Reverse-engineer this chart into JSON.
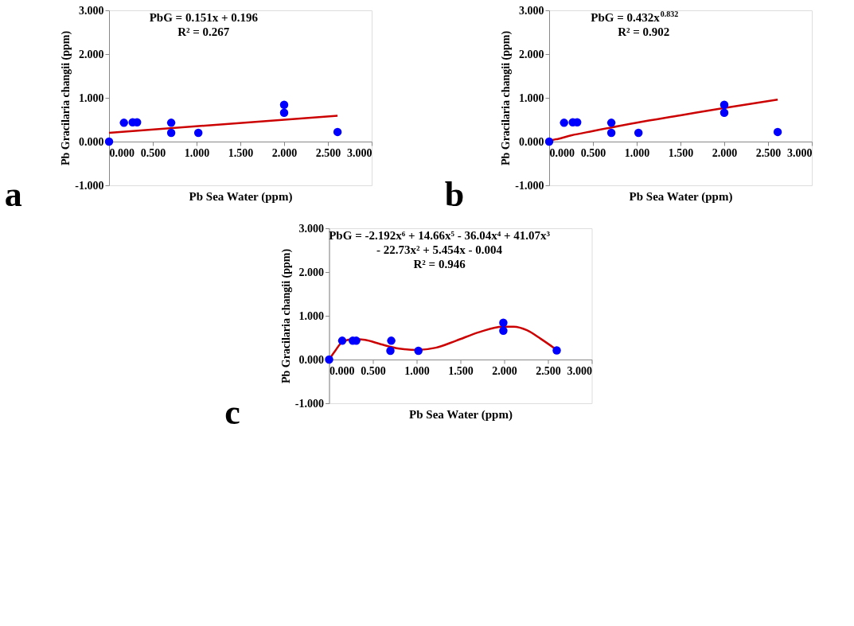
{
  "chart_data": [
    {
      "type": "scatter",
      "title": "a",
      "xlabel": "Pb Sea Water (ppm)",
      "ylabel": "Pb Gracilaria changii  (ppm)",
      "xlim": [
        0,
        3
      ],
      "ylim": [
        -1,
        3
      ],
      "xticks": [
        {
          "value": 0,
          "label": "0.000"
        },
        {
          "value": 0.5,
          "label": "0.500"
        },
        {
          "value": 1,
          "label": "1.000"
        },
        {
          "value": 1.5,
          "label": "1.500"
        },
        {
          "value": 2,
          "label": "2.000"
        },
        {
          "value": 2.5,
          "label": "2.500"
        },
        {
          "value": 3,
          "label": "3.000"
        }
      ],
      "yticks": [
        {
          "value": -1,
          "label": "-1.000"
        },
        {
          "value": 0,
          "label": "0.000"
        },
        {
          "value": 1,
          "label": "1.000"
        },
        {
          "value": 2,
          "label": "2.000"
        },
        {
          "value": 3,
          "label": "3.000"
        }
      ],
      "annotations": [
        "PbG = 0.151x + 0.196",
        "R² = 0.267"
      ],
      "series": [
        {
          "marker": "circle",
          "color": "#0000ff",
          "x": [
            0,
            0.17,
            0.27,
            0.32,
            0.71,
            0.71,
            1.02,
            2.0,
            2.0,
            2.61
          ],
          "values": [
            0,
            0.43,
            0.44,
            0.44,
            0.43,
            0.2,
            0.2,
            0.84,
            0.66,
            0.22
          ]
        },
        {
          "type": "line",
          "marker": "none",
          "color": "#cc0000",
          "x": [
            0,
            2.61
          ],
          "values": [
            0.2,
            0.59
          ]
        }
      ]
    },
    {
      "type": "scatter",
      "title": "b",
      "xlabel": "Pb Sea Water (ppm)",
      "ylabel": "Pb Gracilaria changii  (ppm)",
      "xlim": [
        0,
        3
      ],
      "ylim": [
        -1,
        3
      ],
      "xticks": [
        {
          "value": 0,
          "label": "0.000"
        },
        {
          "value": 0.5,
          "label": "0.500"
        },
        {
          "value": 1,
          "label": "1.000"
        },
        {
          "value": 1.5,
          "label": "1.500"
        },
        {
          "value": 2,
          "label": "2.000"
        },
        {
          "value": 2.5,
          "label": "2.500"
        },
        {
          "value": 3,
          "label": "3.000"
        }
      ],
      "yticks": [
        {
          "value": -1,
          "label": "-1.000"
        },
        {
          "value": 0,
          "label": "0.000"
        },
        {
          "value": 1,
          "label": "1.000"
        },
        {
          "value": 2,
          "label": "2.000"
        },
        {
          "value": 3,
          "label": "3.000"
        }
      ],
      "annotations": [
        "PbG = 0.432x$^{0.832}$",
        "R² = 0.902"
      ],
      "series": [
        {
          "marker": "circle",
          "color": "#0000ff",
          "x": [
            0,
            0.17,
            0.27,
            0.32,
            0.71,
            0.71,
            1.02,
            2.0,
            2.0,
            2.61
          ],
          "values": [
            0,
            0.43,
            0.44,
            0.44,
            0.43,
            0.2,
            0.2,
            0.84,
            0.66,
            0.22
          ]
        },
        {
          "type": "line",
          "marker": "none",
          "color": "#cc0000",
          "x": [
            0,
            0.05,
            0.1,
            0.25,
            0.5,
            1,
            1.5,
            2,
            2.61
          ],
          "values": [
            0,
            0.04,
            0.06,
            0.14,
            0.24,
            0.43,
            0.6,
            0.77,
            0.96
          ]
        }
      ]
    },
    {
      "type": "scatter",
      "title": "c",
      "xlabel": "Pb Sea Water (ppm)",
      "ylabel": "Pb Gracilaria changii  (ppm)",
      "xlim": [
        0,
        3
      ],
      "ylim": [
        -1,
        3
      ],
      "xticks": [
        {
          "value": 0,
          "label": "0.000"
        },
        {
          "value": 0.5,
          "label": "0.500"
        },
        {
          "value": 1,
          "label": "1.000"
        },
        {
          "value": 1.5,
          "label": "1.500"
        },
        {
          "value": 2,
          "label": "2.000"
        },
        {
          "value": 2.5,
          "label": "2.500"
        },
        {
          "value": 3,
          "label": "3.000"
        }
      ],
      "yticks": [
        {
          "value": -1,
          "label": "-1.000"
        },
        {
          "value": 0,
          "label": "0.000"
        },
        {
          "value": 1,
          "label": "1.000"
        },
        {
          "value": 2,
          "label": "2.000"
        },
        {
          "value": 3,
          "label": "3.000"
        }
      ],
      "annotations": [
        "PbG = -2.192x⁶ + 14.66x⁵ - 36.04x⁴ + 41.07x³",
        "- 22.73x² + 5.454x - 0.004",
        "R² = 0.946"
      ],
      "series": [
        {
          "marker": "circle",
          "color": "#0000ff",
          "x": [
            0,
            0.15,
            0.27,
            0.31,
            0.7,
            0.71,
            1.02,
            1.99,
            1.99,
            2.6
          ],
          "values": [
            0,
            0.43,
            0.43,
            0.43,
            0.2,
            0.43,
            0.2,
            0.84,
            0.66,
            0.21
          ]
        },
        {
          "type": "line",
          "marker": "none",
          "color": "#cc0000",
          "x": [
            0,
            0.07,
            0.15,
            0.28,
            0.41,
            0.59,
            0.8,
            1.01,
            1.22,
            1.45,
            1.72,
            1.98,
            2.11,
            2.26,
            2.42,
            2.6
          ],
          "values": [
            0,
            0.2,
            0.4,
            0.47,
            0.45,
            0.35,
            0.25,
            0.22,
            0.27,
            0.43,
            0.63,
            0.75,
            0.75,
            0.67,
            0.47,
            0.22
          ]
        }
      ]
    }
  ]
}
